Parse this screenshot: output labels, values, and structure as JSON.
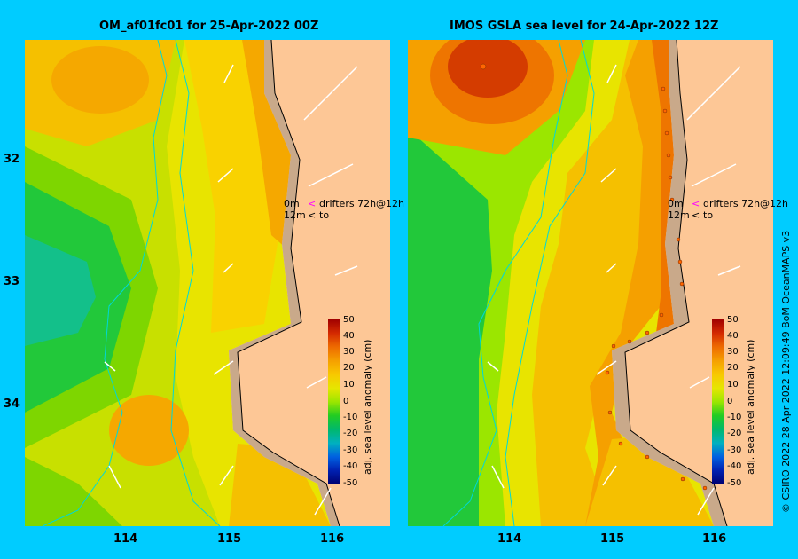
{
  "panels": [
    {
      "title": "OM_af01fc01 for 25-Apr-2022 00Z"
    },
    {
      "title": "IMOS GSLA sea level  for 24-Apr-2022 12Z"
    }
  ],
  "axes": {
    "y_ticks": [
      "32",
      "33",
      "34"
    ],
    "x_ticks": [
      "114",
      "115",
      "116"
    ]
  },
  "legend": {
    "row1_depth": "0m",
    "row1_marker": "<",
    "row1_text": "drifters 72h@12h",
    "row2_depth": "12m",
    "row2_marker": "<",
    "row2_text": "to"
  },
  "colorbar": {
    "label": "adj. sea level anomaly (cm)",
    "ticks": [
      "50",
      "40",
      "30",
      "20",
      "10",
      "0",
      "-10",
      "-20",
      "-30",
      "-40",
      "-50"
    ]
  },
  "credit": "© CSIRO 2022   28 Apr 2022 12:09:49 BoM OceanMAPS v3",
  "colors": {
    "background": "#00ccff",
    "land": "#fdc796",
    "coast": "#c9a98a",
    "drifter_0m": "#ff00ff"
  }
}
